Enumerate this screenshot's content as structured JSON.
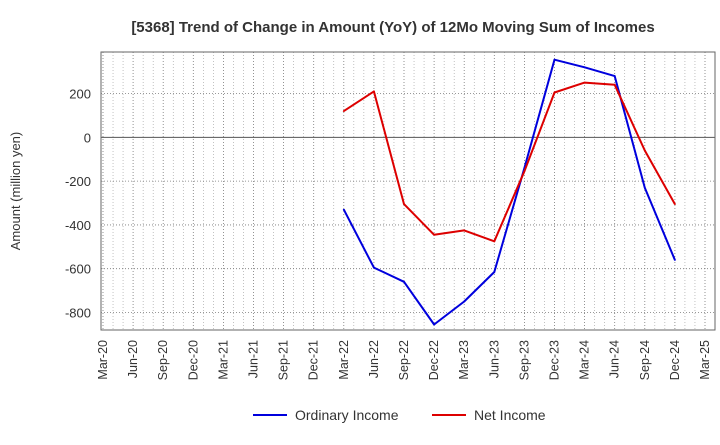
{
  "chart_data": {
    "type": "line",
    "title": "[5368]  Trend of Change in Amount (YoY) of 12Mo Moving Sum of Incomes",
    "ylabel": "Amount (million yen)",
    "xlabel": "",
    "categories": [
      "Mar-20",
      "Jun-20",
      "Sep-20",
      "Dec-20",
      "Mar-21",
      "Jun-21",
      "Sep-21",
      "Dec-21",
      "Mar-22",
      "Jun-22",
      "Sep-22",
      "Dec-22",
      "Mar-23",
      "Jun-23",
      "Sep-23",
      "Dec-23",
      "Mar-24",
      "Jun-24",
      "Sep-24",
      "Dec-24",
      "Mar-25"
    ],
    "ylim": [
      -880,
      390
    ],
    "yticks": [
      200,
      0,
      -200,
      -400,
      -600,
      -800
    ],
    "grid": true,
    "legend_position": "bottom",
    "series": [
      {
        "name": "Ordinary Income",
        "color": "#0000dd",
        "values": [
          null,
          null,
          null,
          null,
          null,
          null,
          null,
          null,
          -330,
          -595,
          -660,
          -855,
          -750,
          -615,
          -140,
          355,
          320,
          280,
          -230,
          -560,
          null
        ]
      },
      {
        "name": "Net Income",
        "color": "#dd0000",
        "values": [
          null,
          null,
          null,
          null,
          null,
          null,
          null,
          null,
          120,
          210,
          -305,
          -445,
          -425,
          -475,
          -155,
          205,
          250,
          240,
          -60,
          -305,
          null
        ]
      }
    ]
  }
}
